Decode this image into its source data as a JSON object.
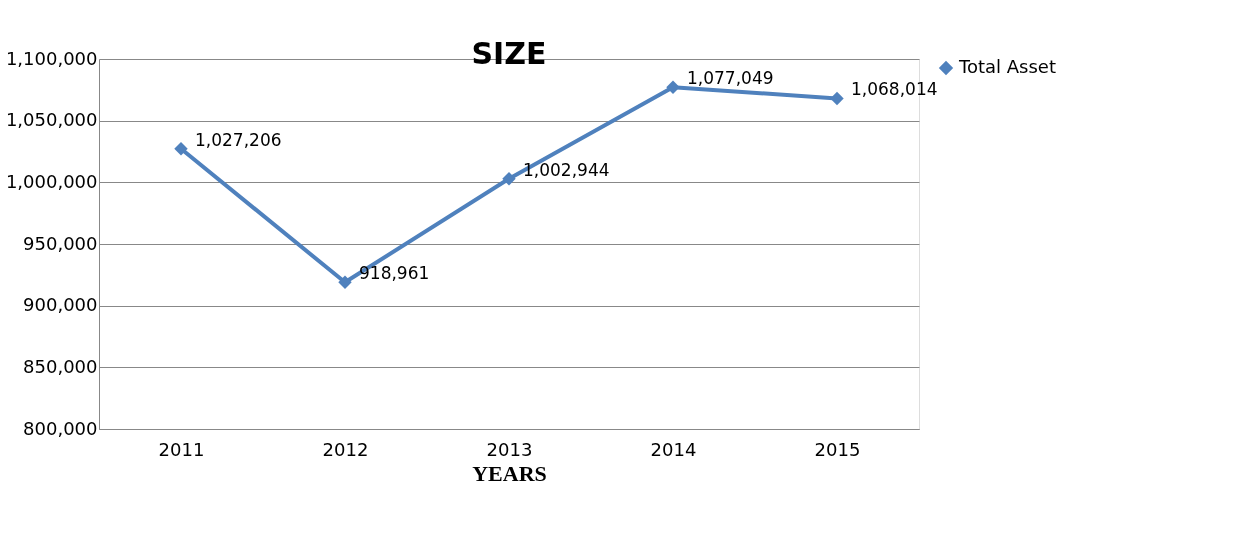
{
  "chart_data": {
    "type": "line",
    "title": "SIZE",
    "xlabel": "YEARS",
    "categories": [
      "2011",
      "2012",
      "2013",
      "2014",
      "2015"
    ],
    "series": [
      {
        "name": "Total Asset",
        "color": "#4f81bd",
        "values": [
          1027206,
          918961,
          1002944,
          1077049,
          1068014
        ],
        "value_labels": [
          "1,027,206",
          "918,961",
          "1,002,944",
          "1,077,049",
          "1,068,014"
        ]
      }
    ],
    "ylim": [
      800000,
      1100000
    ],
    "yticks": [
      {
        "value": 800000,
        "label": "800,000"
      },
      {
        "value": 850000,
        "label": "850,000"
      },
      {
        "value": 900000,
        "label": "900,000"
      },
      {
        "value": 950000,
        "label": "950,000"
      },
      {
        "value": 1000000,
        "label": "1,000,000"
      },
      {
        "value": 1050000,
        "label": "1,050,000"
      },
      {
        "value": 1100000,
        "label": "1,100,000"
      }
    ],
    "grid": "y",
    "legend": "right",
    "marker": "diamond",
    "line_style": "solid"
  }
}
